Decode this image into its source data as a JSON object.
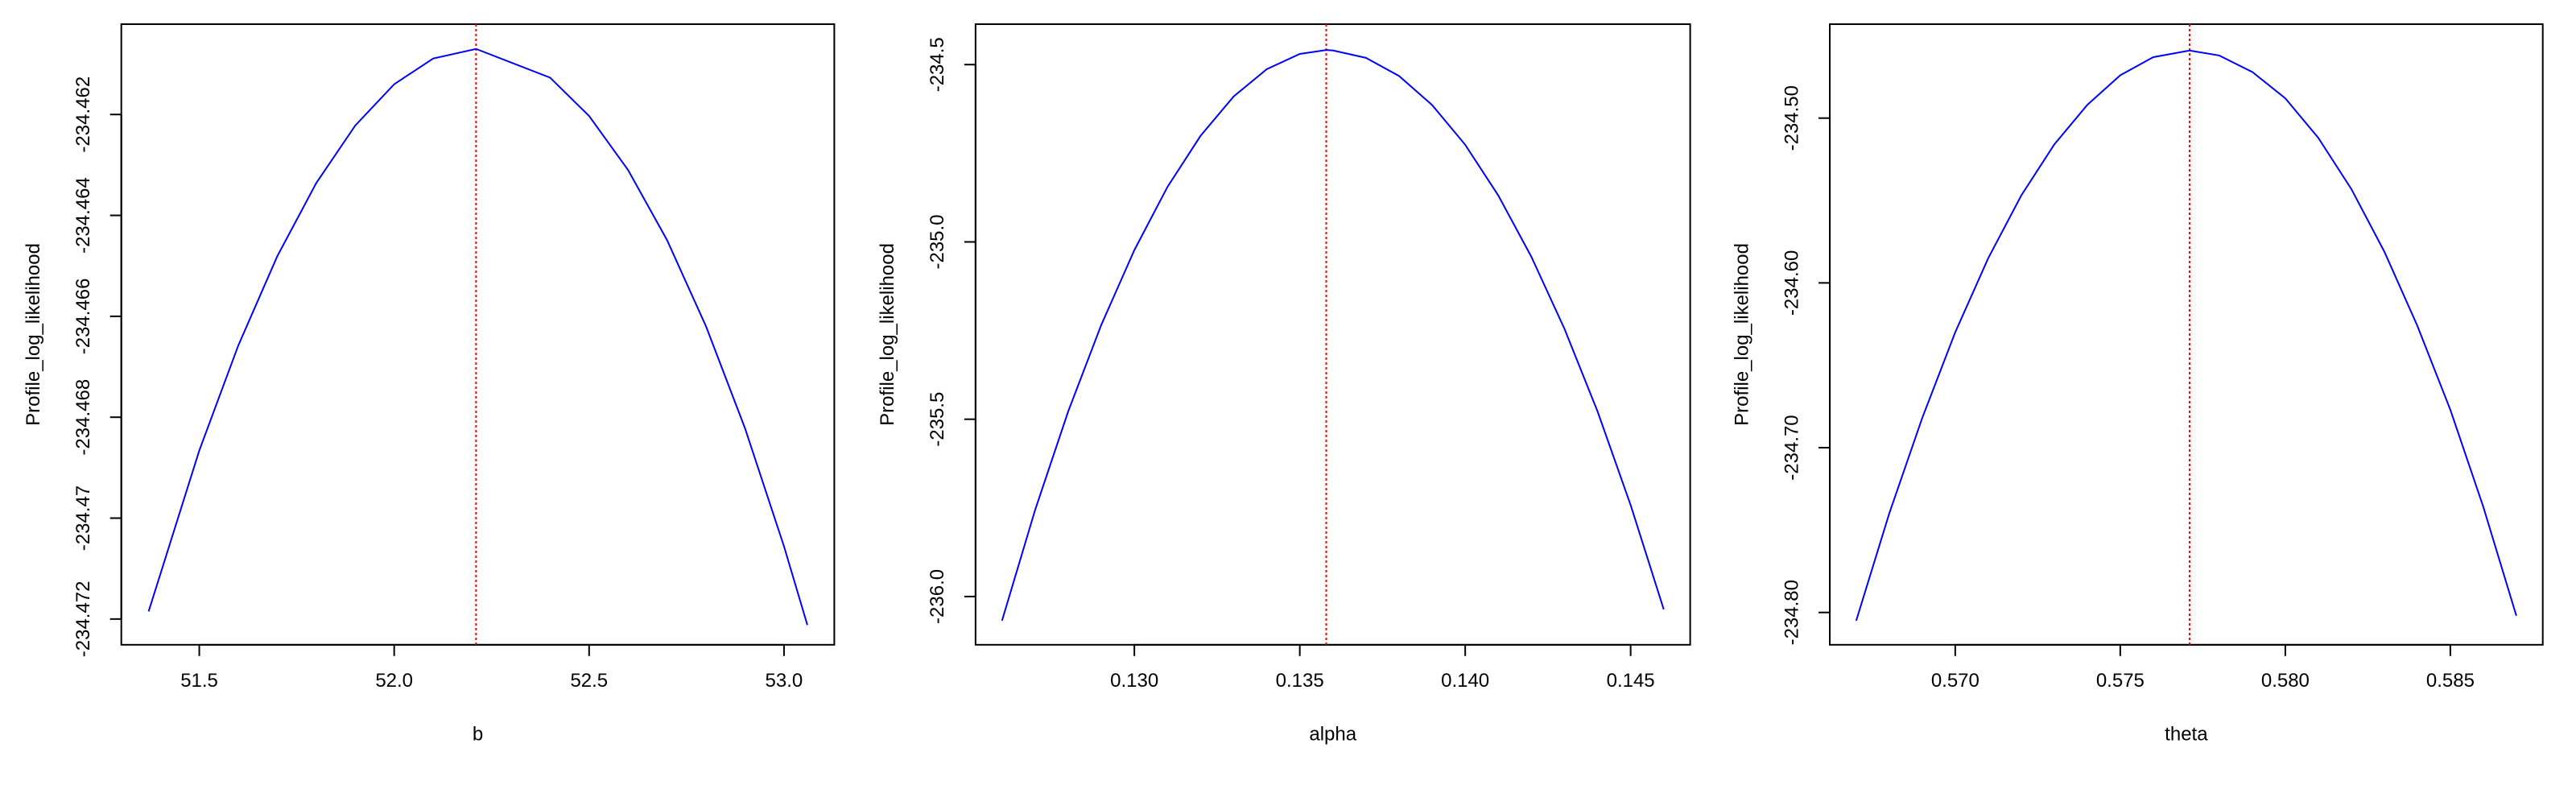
{
  "chart_data": [
    {
      "type": "line",
      "xlabel": "b",
      "ylabel": "Profile_log_likelihood",
      "color": "#0000ff",
      "vline": 52.21,
      "vline_color": "#ff0000",
      "x": [
        51.37,
        51.5,
        51.6,
        51.7,
        51.8,
        51.9,
        52.0,
        52.1,
        52.21,
        52.4,
        52.5,
        52.6,
        52.7,
        52.8,
        52.9,
        53.0,
        53.06
      ],
      "values": [
        -234.47185,
        -234.46866,
        -234.46658,
        -234.46481,
        -234.46336,
        -234.46222,
        -234.4614,
        -234.46089,
        -234.4607,
        -234.46127,
        -234.46203,
        -234.4631,
        -234.46449,
        -234.4662,
        -234.46822,
        -234.47056,
        -234.47212
      ],
      "xlim": [
        51.3,
        53.129
      ],
      "ylim": [
        -234.47251,
        -234.46021
      ],
      "xticks": [
        51.5,
        {
          "value": 52.0,
          "label": "52.0"
        },
        52.5,
        {
          "value": 53.0,
          "label": "53.0"
        }
      ],
      "yticks": [
        -234.472,
        -234.47,
        -234.468,
        -234.466,
        -234.464,
        -234.462
      ]
    },
    {
      "type": "line",
      "xlabel": "alpha",
      "ylabel": "Profile_log_likelihood",
      "color": "#0000ff",
      "vline": 0.1358,
      "vline_color": "#ff0000",
      "x": [
        0.126,
        0.127,
        0.128,
        0.129,
        0.13,
        0.131,
        0.132,
        0.133,
        0.134,
        0.135,
        0.1358,
        0.136,
        0.137,
        0.138,
        0.139,
        0.14,
        0.141,
        0.142,
        0.143,
        0.144,
        0.145,
        0.146
      ],
      "values": [
        -236.068,
        -235.756,
        -235.478,
        -235.234,
        -235.023,
        -234.845,
        -234.701,
        -234.59,
        -234.513,
        -234.47,
        -234.459,
        -234.46,
        -234.481,
        -234.532,
        -234.614,
        -234.726,
        -234.869,
        -235.042,
        -235.245,
        -235.478,
        -235.742,
        -236.036
      ],
      "xlim": [
        0.1252,
        0.1468
      ],
      "ylim": [
        -236.136,
        -234.386
      ],
      "xticks": [
        {
          "value": 0.13,
          "label": "0.130"
        },
        0.135,
        {
          "value": 0.14,
          "label": "0.140"
        },
        0.145
      ],
      "yticks": [
        {
          "value": -236.0,
          "label": "-236.0"
        },
        -235.5,
        {
          "value": -235.0,
          "label": "-235.0"
        },
        -234.5
      ]
    },
    {
      "type": "line",
      "xlabel": "theta",
      "ylabel": "Profile_log_likelihood",
      "color": "#0000ff",
      "vline": 0.5771,
      "vline_color": "#ff0000",
      "x": [
        0.567,
        0.568,
        0.569,
        0.57,
        0.571,
        0.572,
        0.573,
        0.574,
        0.575,
        0.576,
        0.5771,
        0.578,
        0.579,
        0.58,
        0.581,
        0.582,
        0.583,
        0.584,
        0.585,
        0.586,
        0.587
      ],
      "values": [
        -234.805,
        -234.74,
        -234.682,
        -234.63,
        -234.585,
        -234.547,
        -234.516,
        -234.492,
        -234.474,
        -234.463,
        -234.459,
        -234.462,
        -234.472,
        -234.488,
        -234.512,
        -234.543,
        -234.581,
        -234.626,
        -234.677,
        -234.736,
        -234.802
      ],
      "xlim": [
        0.5662,
        0.5878
      ],
      "ylim": [
        -234.8196,
        -234.443
      ],
      "xticks": [
        {
          "value": 0.57,
          "label": "0.570"
        },
        0.575,
        {
          "value": 0.58,
          "label": "0.580"
        },
        0.585
      ],
      "yticks": [
        {
          "value": -234.8,
          "label": "-234.80"
        },
        {
          "value": -234.7,
          "label": "-234.70"
        },
        {
          "value": -234.6,
          "label": "-234.60"
        },
        {
          "value": -234.5,
          "label": "-234.50"
        }
      ]
    }
  ]
}
